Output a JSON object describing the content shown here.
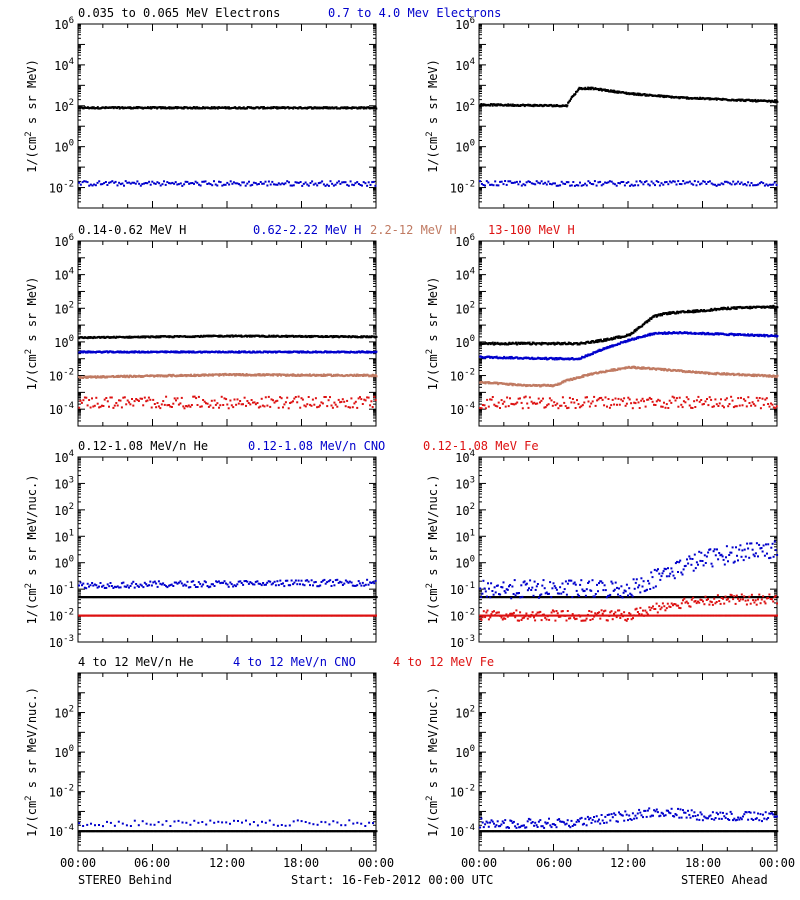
{
  "page": {
    "start_label": "Start: 16-Feb-2012 00:00 UTC",
    "left_label": "STEREO Behind",
    "right_label": "STEREO Ahead"
  },
  "x_ticks": [
    "00:00",
    "06:00",
    "12:00",
    "18:00",
    "00:00"
  ],
  "colors": {
    "black": "#000000",
    "blue": "#0000cc",
    "salmon": "#c07a62",
    "red": "#dd1111"
  },
  "chart_data": [
    {
      "id": "electrons",
      "type": "scatter",
      "ylabel_main": "1/(cm",
      "ylabel_sup": "2",
      "ylabel_tail": " s sr MeV)",
      "yscale": "log",
      "ylim_exp": [
        -3,
        6
      ],
      "yticks_exp": [
        -2,
        0,
        2,
        4,
        6
      ],
      "series": [
        {
          "name": "0.035 to 0.065 MeV Electrons",
          "color": "#000000"
        },
        {
          "name": "0.7 to 4.0 Mev Electrons",
          "color": "#0000cc"
        }
      ],
      "panels": {
        "behind": [
          {
            "x": [
              0,
              24
            ],
            "log10y": [
              1.9,
              1.9
            ],
            "jitter": 0.04,
            "density": 1.5
          },
          {
            "x": [
              0,
              24
            ],
            "log10y": [
              -1.8,
              -1.8
            ],
            "jitter": 0.12,
            "density": 0.6
          }
        ],
        "ahead": [
          {
            "x": [
              0,
              7.0,
              7.2,
              8.0,
              9.0,
              12,
              16,
              20,
              24
            ],
            "log10y": [
              2.05,
              2.0,
              2.25,
              2.85,
              2.85,
              2.6,
              2.4,
              2.3,
              2.2
            ],
            "jitter": 0.04,
            "density": 1.5
          },
          {
            "x": [
              0,
              24
            ],
            "log10y": [
              -1.8,
              -1.8
            ],
            "jitter": 0.12,
            "density": 0.6
          }
        ]
      }
    },
    {
      "id": "protons",
      "type": "scatter",
      "ylabel_main": "1/(cm",
      "ylabel_sup": "2",
      "ylabel_tail": " s sr MeV)",
      "yscale": "log",
      "ylim_exp": [
        -5,
        6
      ],
      "yticks_exp": [
        -4,
        -2,
        0,
        2,
        4,
        6
      ],
      "series": [
        {
          "name": "0.14-0.62 MeV H",
          "color": "#000000"
        },
        {
          "name": "0.62-2.22 MeV H",
          "color": "#0000cc"
        },
        {
          "name": "2.2-12 MeV H",
          "color": "#c07a62"
        },
        {
          "name": "13-100 MeV H",
          "color": "#dd1111"
        }
      ],
      "panels": {
        "behind": [
          {
            "x": [
              0,
              12,
              24
            ],
            "log10y": [
              0.25,
              0.35,
              0.3
            ],
            "jitter": 0.04,
            "density": 1.5
          },
          {
            "x": [
              0,
              24
            ],
            "log10y": [
              -0.6,
              -0.6
            ],
            "jitter": 0.04,
            "density": 1.5
          },
          {
            "x": [
              0,
              12,
              24
            ],
            "log10y": [
              -2.1,
              -1.95,
              -2.0
            ],
            "jitter": 0.05,
            "density": 1.5
          },
          {
            "x": [
              0,
              24
            ],
            "log10y": [
              -3.6,
              -3.6
            ],
            "jitter": 0.35,
            "density": 0.7
          }
        ],
        "ahead": [
          {
            "x": [
              0,
              8,
              10,
              12,
              14,
              15,
              17,
              20,
              24
            ],
            "log10y": [
              -0.1,
              -0.1,
              0.1,
              0.4,
              1.5,
              1.7,
              1.8,
              2.0,
              2.1
            ],
            "jitter": 0.06,
            "density": 1.5
          },
          {
            "x": [
              0,
              6,
              8,
              10,
              12,
              14,
              16,
              20,
              24
            ],
            "log10y": [
              -0.9,
              -1.0,
              -1.0,
              -0.4,
              0.1,
              0.5,
              0.55,
              0.45,
              0.35
            ],
            "jitter": 0.05,
            "density": 1.5
          },
          {
            "x": [
              0,
              4,
              6,
              7,
              9,
              12,
              14,
              18,
              24
            ],
            "log10y": [
              -2.4,
              -2.6,
              -2.6,
              -2.3,
              -1.9,
              -1.5,
              -1.6,
              -1.85,
              -2.05
            ],
            "jitter": 0.05,
            "density": 1.5
          },
          {
            "x": [
              0,
              24
            ],
            "log10y": [
              -3.6,
              -3.6
            ],
            "jitter": 0.35,
            "density": 0.7
          }
        ]
      }
    },
    {
      "id": "heavy_low",
      "type": "scatter",
      "ylabel_main": "1/(cm",
      "ylabel_sup": "2",
      "ylabel_tail": " s sr MeV/nuc.)",
      "yscale": "log",
      "ylim_exp": [
        -3,
        4
      ],
      "yticks_exp": [
        -3,
        -2,
        -1,
        0,
        1,
        2,
        3,
        4
      ],
      "series": [
        {
          "name": "0.12-1.08 MeV/n He",
          "color": "#000000"
        },
        {
          "name": "0.12-1.08 MeV/n CNO",
          "color": "#0000cc"
        },
        {
          "name": "0.12-1.08 MeV Fe",
          "color": "#dd1111"
        }
      ],
      "panels": {
        "behind": [
          {
            "x": [
              0,
              24
            ],
            "log10y": [
              -1.3,
              -1.3
            ],
            "jitter": 0.0,
            "density": 2.2
          },
          {
            "x": [
              0,
              24
            ],
            "log10y": [
              -0.85,
              -0.75
            ],
            "jitter": 0.12,
            "density": 0.7
          },
          {
            "x": [
              0,
              24
            ],
            "log10y": [
              -2.0,
              -2.0
            ],
            "jitter": 0.0,
            "density": 0.8
          },
          {
            "x": [
              0,
              24
            ],
            "log10y": [
              -2.0,
              -2.0
            ],
            "jitter": 0.0,
            "density": 0.8
          }
        ],
        "ahead": [
          {
            "x": [
              0,
              24
            ],
            "log10y": [
              -1.3,
              -1.3
            ],
            "jitter": 0.0,
            "density": 1.6
          },
          {
            "x": [
              0,
              12,
              14,
              16,
              18,
              20,
              22,
              24
            ],
            "log10y": [
              -1.0,
              -1.0,
              -0.6,
              -0.2,
              0.15,
              0.3,
              0.5,
              0.5
            ],
            "jitter": 0.35,
            "density": 0.9
          },
          {
            "x": [
              0,
              12,
              15,
              18,
              24
            ],
            "log10y": [
              -2.0,
              -2.0,
              -1.6,
              -1.4,
              -1.4
            ],
            "jitter": 0.2,
            "density": 0.8
          },
          {
            "x": [
              0,
              24
            ],
            "log10y": [
              -2.0,
              -2.0
            ],
            "jitter": 0.0,
            "density": 0.9
          }
        ]
      }
    },
    {
      "id": "heavy_high",
      "type": "scatter",
      "ylabel_main": "1/(cm",
      "ylabel_sup": "2",
      "ylabel_tail": " s sr MeV/nuc.)",
      "yscale": "log",
      "ylim_exp": [
        -5,
        4
      ],
      "yticks_exp": [
        -4,
        -2,
        0,
        2
      ],
      "series": [
        {
          "name": "4 to 12 MeV/n He",
          "color": "#000000"
        },
        {
          "name": "4 to 12 MeV/n CNO",
          "color": "#0000cc"
        },
        {
          "name": "4 to 12 MeV Fe",
          "color": "#dd1111"
        }
      ],
      "panels": {
        "behind": [
          {
            "x": [
              0,
              24
            ],
            "log10y": [
              -4.0,
              -4.0
            ],
            "jitter": 0.0,
            "density": 1.4
          },
          {
            "x": [
              0,
              24
            ],
            "log10y": [
              -3.6,
              -3.6
            ],
            "jitter": 0.15,
            "density": 0.25
          }
        ],
        "ahead": [
          {
            "x": [
              0,
              24
            ],
            "log10y": [
              -4.0,
              -4.0
            ],
            "jitter": 0.0,
            "density": 1.4
          },
          {
            "x": [
              0,
              6,
              9,
              12,
              14,
              18,
              24
            ],
            "log10y": [
              -3.6,
              -3.6,
              -3.5,
              -3.2,
              -3.0,
              -3.2,
              -3.3
            ],
            "jitter": 0.25,
            "density": 0.8
          }
        ]
      }
    }
  ]
}
